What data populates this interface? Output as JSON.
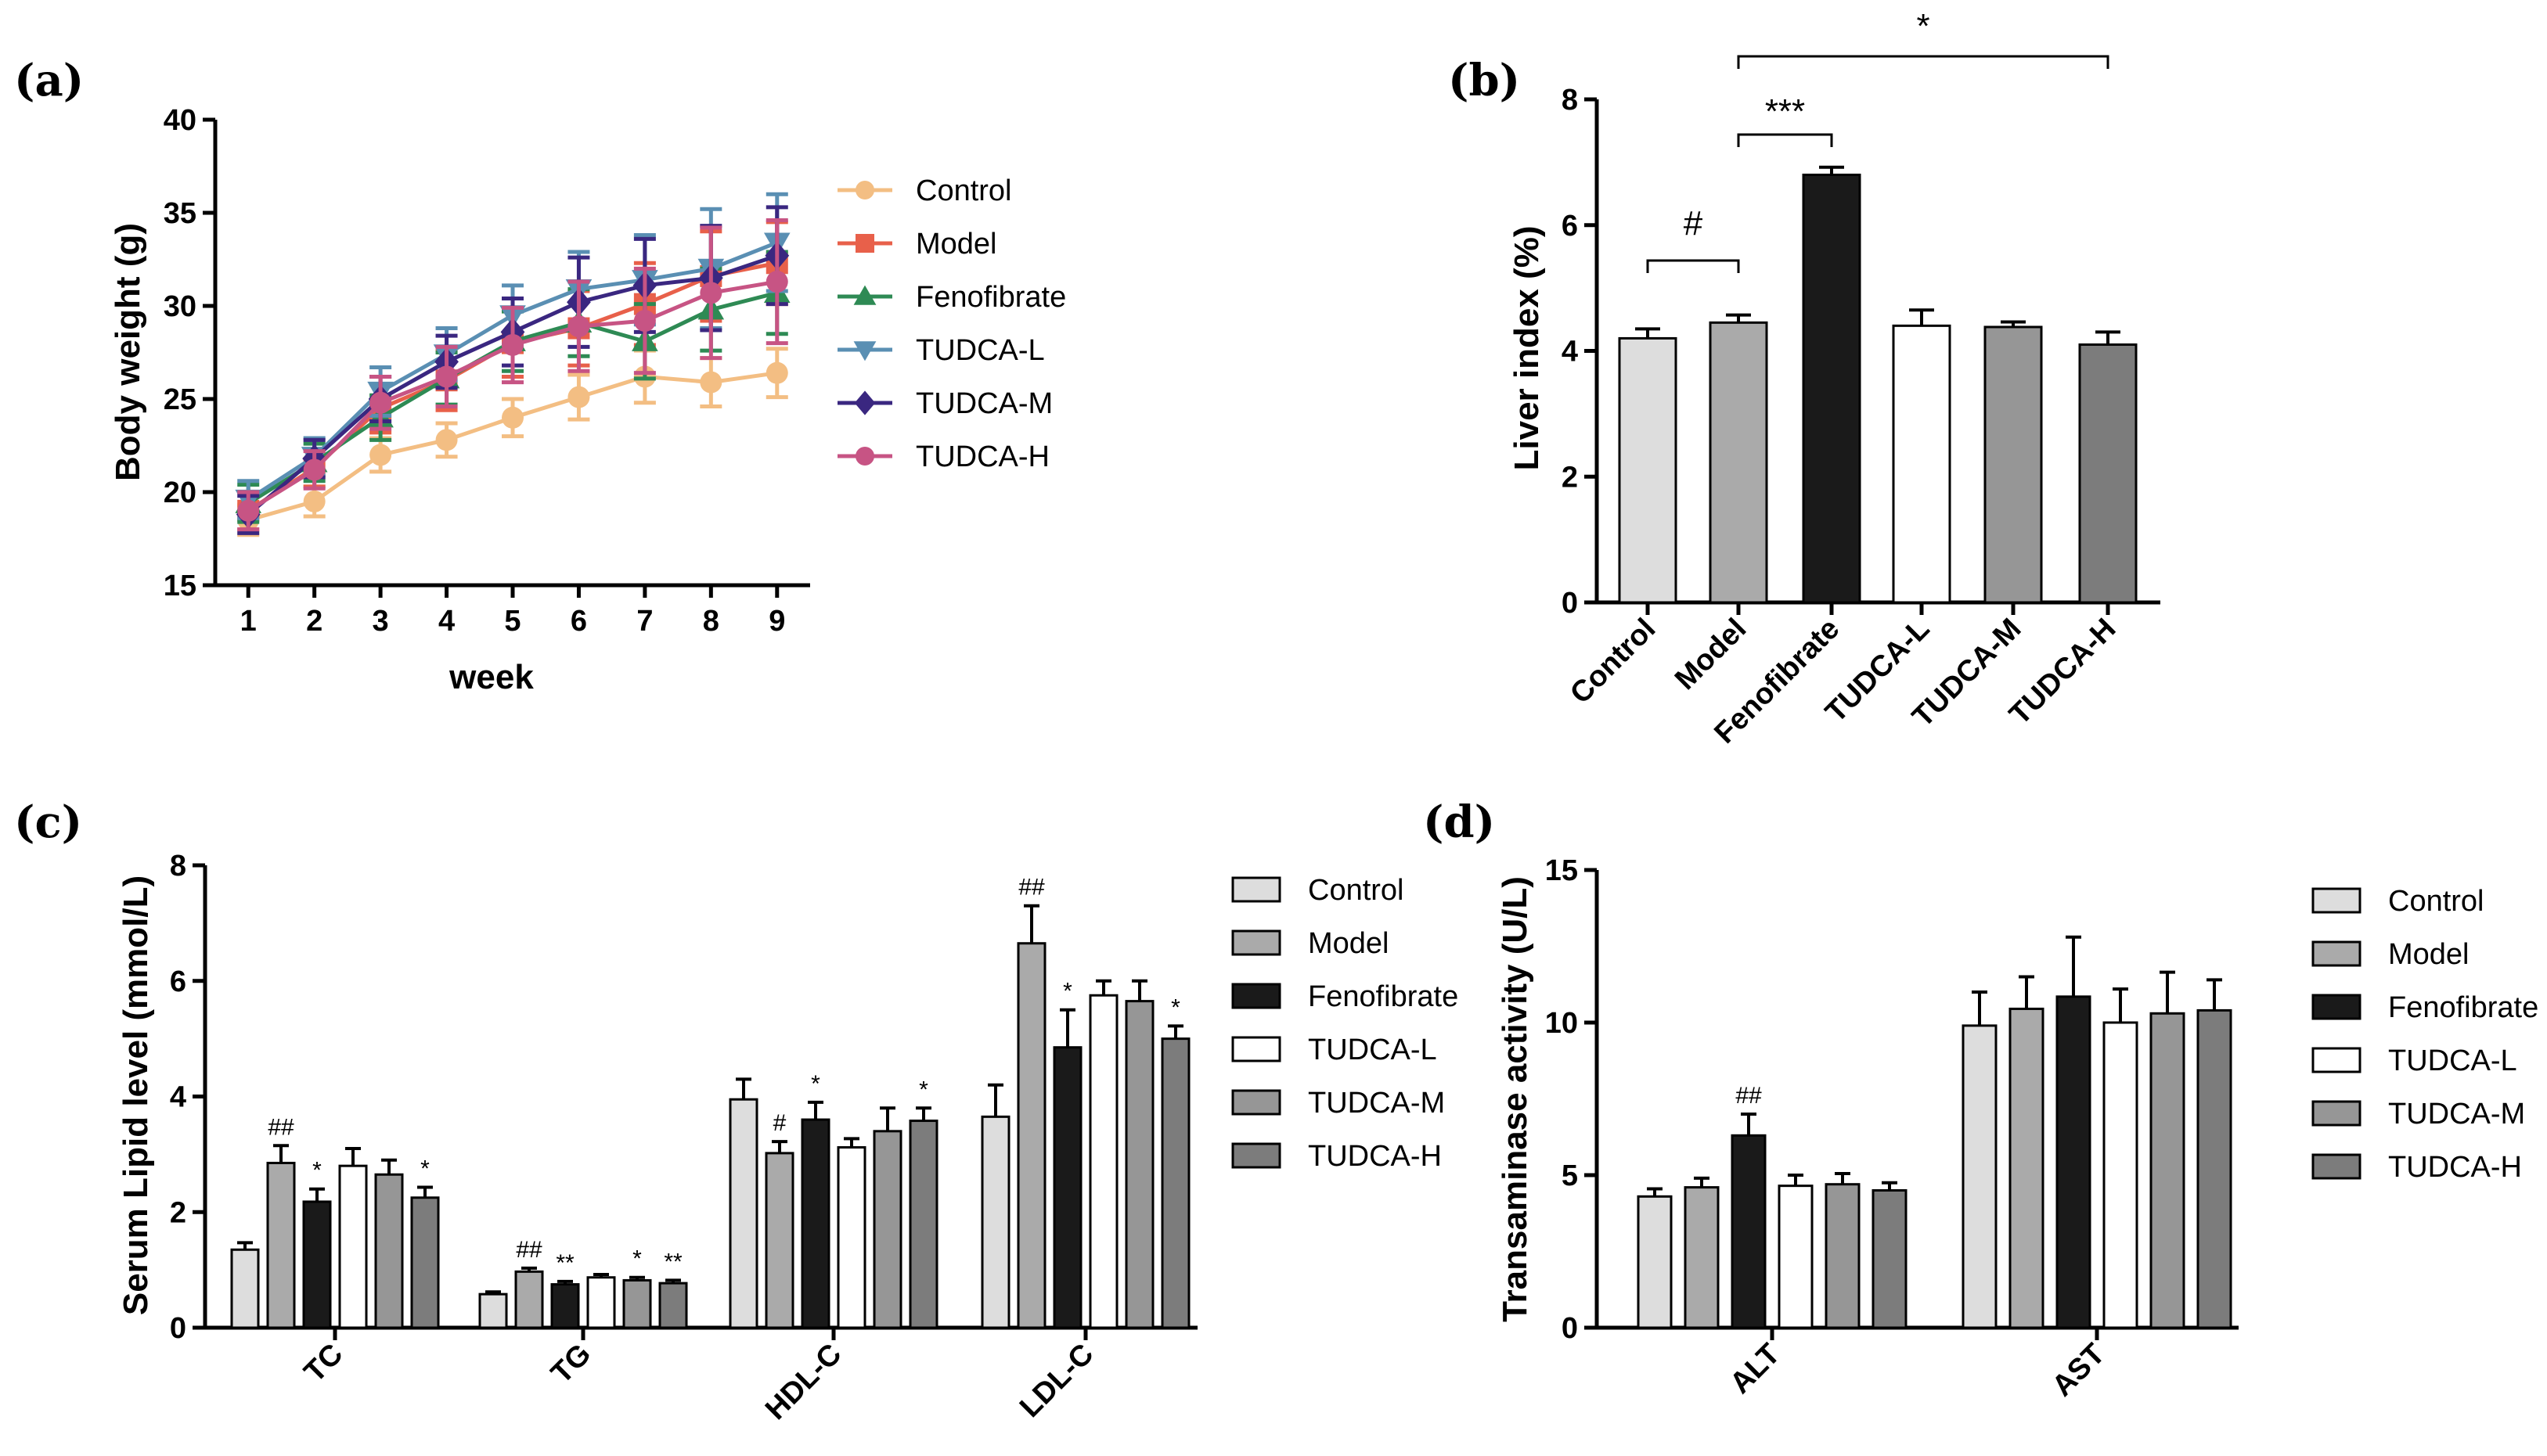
{
  "figure": {
    "groups": [
      "Control",
      "Model",
      "Fenofibrate",
      "TUDCA-L",
      "TUDCA-M",
      "TUDCA-H"
    ],
    "colors": {
      "control_line": "#F3BE83",
      "model_line": "#E8604A",
      "fenofibrate_line": "#2E8A54",
      "tudca_l_line": "#5A8FB3",
      "tudca_m_line": "#3A2780",
      "tudca_h_line": "#C75484",
      "bar_control": "#DDDDDD",
      "bar_model": "#AAAAAA",
      "bar_fenofibrate": "#1A1A1A",
      "bar_tudca_l": "#FFFFFF",
      "bar_tudca_m": "#969696",
      "bar_tudca_h": "#7C7C7C"
    }
  },
  "chart_data": [
    {
      "panel": "(a)",
      "type": "line",
      "xlabel": "week",
      "ylabel": "Body weight (g)",
      "x": [
        1,
        2,
        3,
        4,
        5,
        6,
        7,
        8,
        9
      ],
      "xlim": [
        0.5,
        9.5
      ],
      "ylim": [
        15,
        40
      ],
      "yticks": [
        15,
        20,
        25,
        30,
        35,
        40
      ],
      "legend_position": "right",
      "series": [
        {
          "name": "Control",
          "marker": "circle",
          "values": [
            18.5,
            19.5,
            22.0,
            22.8,
            24.0,
            25.1,
            26.2,
            25.9,
            26.4
          ],
          "errors": [
            0.8,
            0.8,
            0.9,
            0.9,
            1.0,
            1.2,
            1.4,
            1.3,
            1.3
          ]
        },
        {
          "name": "Model",
          "marker": "square",
          "values": [
            19.0,
            21.3,
            24.5,
            26.0,
            28.0,
            28.8,
            30.1,
            31.6,
            32.3
          ],
          "errors": [
            1.0,
            1.0,
            1.3,
            1.6,
            1.8,
            2.0,
            2.2,
            2.4,
            2.2
          ]
        },
        {
          "name": "Fenofibrate",
          "marker": "triangle",
          "values": [
            19.4,
            21.6,
            24.0,
            26.1,
            28.1,
            29.1,
            28.1,
            29.8,
            30.7
          ],
          "errors": [
            1.0,
            1.0,
            1.2,
            1.4,
            1.6,
            1.8,
            2.0,
            2.2,
            2.2
          ]
        },
        {
          "name": "TUDCA-L",
          "marker": "tri-down",
          "values": [
            19.6,
            21.9,
            25.4,
            27.4,
            29.5,
            30.9,
            31.4,
            32.0,
            33.4
          ],
          "errors": [
            1.0,
            1.0,
            1.3,
            1.4,
            1.6,
            2.0,
            2.4,
            3.2,
            2.6
          ]
        },
        {
          "name": "TUDCA-M",
          "marker": "diamond",
          "values": [
            18.8,
            21.8,
            25.0,
            27.0,
            28.6,
            30.2,
            31.1,
            31.5,
            32.7
          ],
          "errors": [
            1.0,
            1.0,
            1.2,
            1.4,
            1.8,
            2.4,
            2.5,
            2.8,
            2.6
          ]
        },
        {
          "name": "TUDCA-H",
          "marker": "circle",
          "values": [
            19.0,
            21.2,
            24.8,
            26.2,
            27.9,
            28.9,
            29.2,
            30.7,
            31.3
          ],
          "errors": [
            1.0,
            1.0,
            1.4,
            1.6,
            2.0,
            2.4,
            2.8,
            3.5,
            3.3
          ]
        }
      ]
    },
    {
      "panel": "(b)",
      "type": "bar",
      "ylabel": "Liver index (%)",
      "categories": [
        "Control",
        "Model",
        "Fenofibrate",
        "TUDCA-L",
        "TUDCA-M",
        "TUDCA-H"
      ],
      "values": [
        4.2,
        4.45,
        6.8,
        4.4,
        4.38,
        4.1
      ],
      "errors": [
        0.15,
        0.12,
        0.12,
        0.25,
        0.08,
        0.2
      ],
      "ylim": [
        0,
        8
      ],
      "yticks": [
        0,
        2,
        4,
        6,
        8
      ],
      "annotations": [
        {
          "text": "#",
          "from": "Control",
          "to": "Model"
        },
        {
          "text": "***",
          "from": "Model",
          "to": "Fenofibrate"
        },
        {
          "text": "*",
          "from": "Model",
          "to": "TUDCA-H"
        }
      ]
    },
    {
      "panel": "(c)",
      "type": "bar",
      "ylabel": "Serum Lipid  level (mmol/L)",
      "categories": [
        "TC",
        "TG",
        "HDL-C",
        "LDL-C"
      ],
      "ylim": [
        0,
        8
      ],
      "yticks": [
        0,
        2,
        4,
        6,
        8
      ],
      "legend_position": "right",
      "series": [
        {
          "name": "Control",
          "values": [
            1.35,
            0.58,
            3.95,
            3.65
          ],
          "errors": [
            0.12,
            0.04,
            0.35,
            0.55
          ],
          "marks": [
            "",
            "",
            "",
            ""
          ]
        },
        {
          "name": "Model",
          "values": [
            2.85,
            0.97,
            3.02,
            6.65
          ],
          "errors": [
            0.3,
            0.06,
            0.2,
            0.65
          ],
          "marks": [
            "##",
            "##",
            "#",
            "##"
          ]
        },
        {
          "name": "Fenofibrate",
          "values": [
            2.18,
            0.75,
            3.6,
            4.85
          ],
          "errors": [
            0.22,
            0.05,
            0.3,
            0.65
          ],
          "marks": [
            "*",
            "**",
            "*",
            "*"
          ]
        },
        {
          "name": "TUDCA-L",
          "values": [
            2.8,
            0.87,
            3.12,
            5.75
          ],
          "errors": [
            0.3,
            0.05,
            0.15,
            0.25
          ],
          "marks": [
            "",
            "",
            "",
            ""
          ]
        },
        {
          "name": "TUDCA-M",
          "values": [
            2.65,
            0.82,
            3.4,
            5.65
          ],
          "errors": [
            0.25,
            0.05,
            0.4,
            0.35
          ],
          "marks": [
            "",
            "*",
            "",
            ""
          ]
        },
        {
          "name": "TUDCA-H",
          "values": [
            2.25,
            0.77,
            3.58,
            5.0
          ],
          "errors": [
            0.18,
            0.05,
            0.22,
            0.22
          ],
          "marks": [
            "*",
            "**",
            "*",
            "*"
          ]
        }
      ]
    },
    {
      "panel": "(d)",
      "type": "bar",
      "ylabel": "Transaminase activity (U/L)",
      "categories": [
        "ALT",
        "AST"
      ],
      "ylim": [
        0,
        15
      ],
      "yticks": [
        0,
        5,
        10,
        15
      ],
      "legend_position": "right",
      "series": [
        {
          "name": "Control",
          "values": [
            4.3,
            9.9
          ],
          "errors": [
            0.25,
            1.1
          ],
          "marks": [
            "",
            ""
          ]
        },
        {
          "name": "Model",
          "values": [
            4.6,
            10.45
          ],
          "errors": [
            0.3,
            1.05
          ],
          "marks": [
            "",
            ""
          ]
        },
        {
          "name": "Fenofibrate",
          "values": [
            6.3,
            10.85
          ],
          "errors": [
            0.7,
            1.95
          ],
          "marks": [
            "##",
            ""
          ]
        },
        {
          "name": "TUDCA-L",
          "values": [
            4.65,
            10.0
          ],
          "errors": [
            0.35,
            1.1
          ],
          "marks": [
            "",
            ""
          ]
        },
        {
          "name": "TUDCA-M",
          "values": [
            4.7,
            10.3
          ],
          "errors": [
            0.35,
            1.35
          ],
          "marks": [
            "",
            ""
          ]
        },
        {
          "name": "TUDCA-H",
          "values": [
            4.5,
            10.4
          ],
          "errors": [
            0.25,
            1.0
          ],
          "marks": [
            "",
            ""
          ]
        }
      ]
    }
  ]
}
